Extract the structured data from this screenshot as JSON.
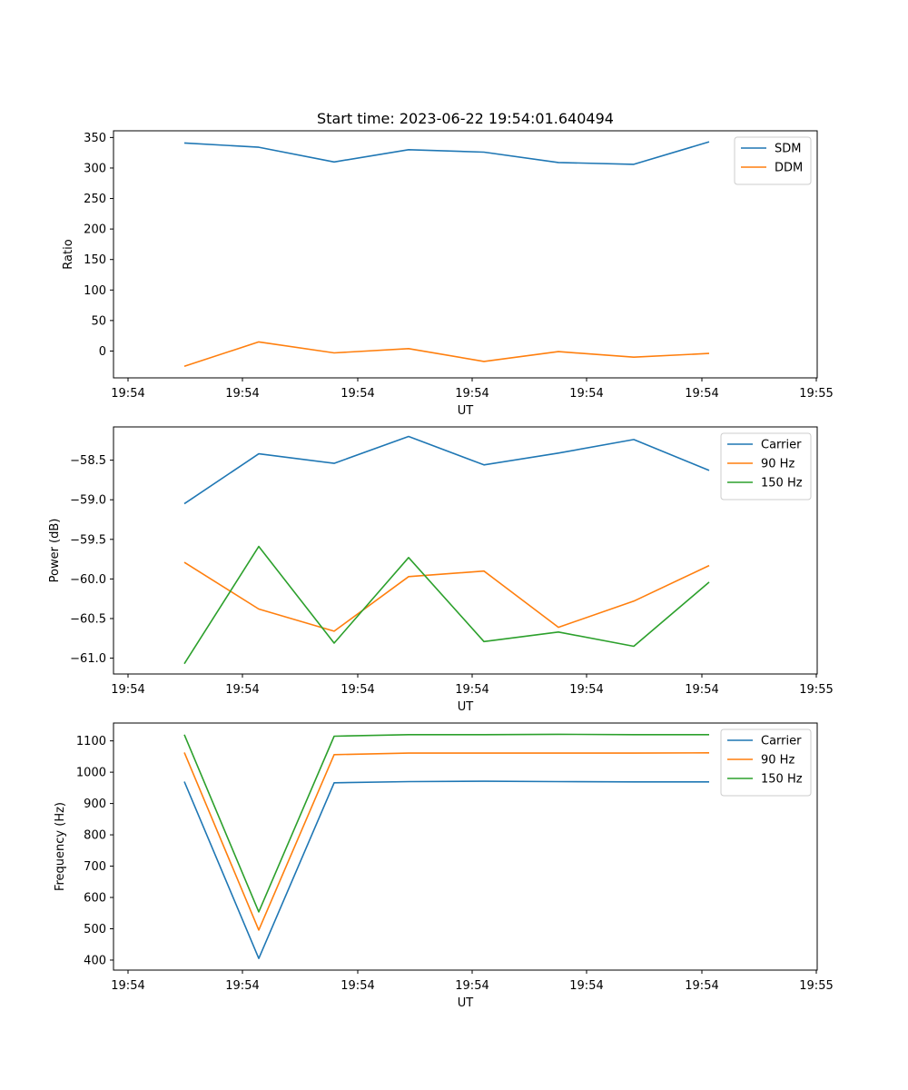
{
  "figure": {
    "title": "Start time: 2023-06-22 19:54:01.640494"
  },
  "chart_data": [
    {
      "type": "line",
      "title": "Start time: 2023-06-22 19:54:01.640494",
      "xlabel": "UT",
      "ylabel": "Ratio",
      "x_tick_labels": [
        "19:54",
        "19:54",
        "19:54",
        "19:54",
        "19:54",
        "19:54",
        "19:54",
        "19:55"
      ],
      "y_ticks": [
        0,
        50,
        100,
        150,
        200,
        250,
        300,
        350
      ],
      "ylim": [
        -44,
        361
      ],
      "legend_position": "top-right",
      "grid": false,
      "series": [
        {
          "name": "SDM",
          "color": "#1f77b4",
          "values": [
            341,
            334,
            310,
            330,
            326,
            309,
            306,
            343
          ]
        },
        {
          "name": "DDM",
          "color": "#ff7f0e",
          "values": [
            -25,
            15,
            -3,
            4,
            -17,
            -1,
            -10,
            -4
          ]
        }
      ]
    },
    {
      "type": "line",
      "xlabel": "UT",
      "ylabel": "Power (dB)",
      "x_tick_labels": [
        "19:54",
        "19:54",
        "19:54",
        "19:54",
        "19:54",
        "19:54",
        "19:54",
        "19:55"
      ],
      "y_ticks": [
        -61.0,
        -60.5,
        -60.0,
        -59.5,
        -59.0,
        -58.5
      ],
      "y_tick_labels": [
        "−61.0",
        "−60.5",
        "−60.0",
        "−59.5",
        "−59.0",
        "−58.5"
      ],
      "ylim": [
        -61.2,
        -58.08
      ],
      "legend_position": "top-right",
      "grid": false,
      "series": [
        {
          "name": "Carrier",
          "color": "#1f77b4",
          "values": [
            -59.05,
            -58.42,
            -58.54,
            -58.2,
            -58.56,
            -58.41,
            -58.24,
            -58.63
          ]
        },
        {
          "name": "90 Hz",
          "color": "#ff7f0e",
          "values": [
            -59.79,
            -60.38,
            -60.66,
            -59.97,
            -59.9,
            -60.61,
            -60.28,
            -59.83
          ]
        },
        {
          "name": "150 Hz",
          "color": "#2ca02c",
          "values": [
            -61.07,
            -59.59,
            -60.81,
            -59.73,
            -60.79,
            -60.67,
            -60.85,
            -60.04
          ]
        }
      ]
    },
    {
      "type": "line",
      "xlabel": "UT",
      "ylabel": "Frequency (Hz)",
      "x_tick_labels": [
        "19:54",
        "19:54",
        "19:54",
        "19:54",
        "19:54",
        "19:54",
        "19:54",
        "19:55"
      ],
      "y_ticks": [
        400,
        500,
        600,
        700,
        800,
        900,
        1000,
        1100
      ],
      "ylim": [
        368,
        1157
      ],
      "legend_position": "top-right",
      "grid": false,
      "series": [
        {
          "name": "Carrier",
          "color": "#1f77b4",
          "values": [
            970,
            405,
            966,
            970,
            971,
            970,
            969,
            969
          ]
        },
        {
          "name": "90 Hz",
          "color": "#ff7f0e",
          "values": [
            1063,
            496,
            1056,
            1061,
            1061,
            1061,
            1061,
            1062
          ]
        },
        {
          "name": "150 Hz",
          "color": "#2ca02c",
          "values": [
            1120,
            554,
            1115,
            1120,
            1120,
            1121,
            1120,
            1120
          ]
        }
      ]
    }
  ]
}
